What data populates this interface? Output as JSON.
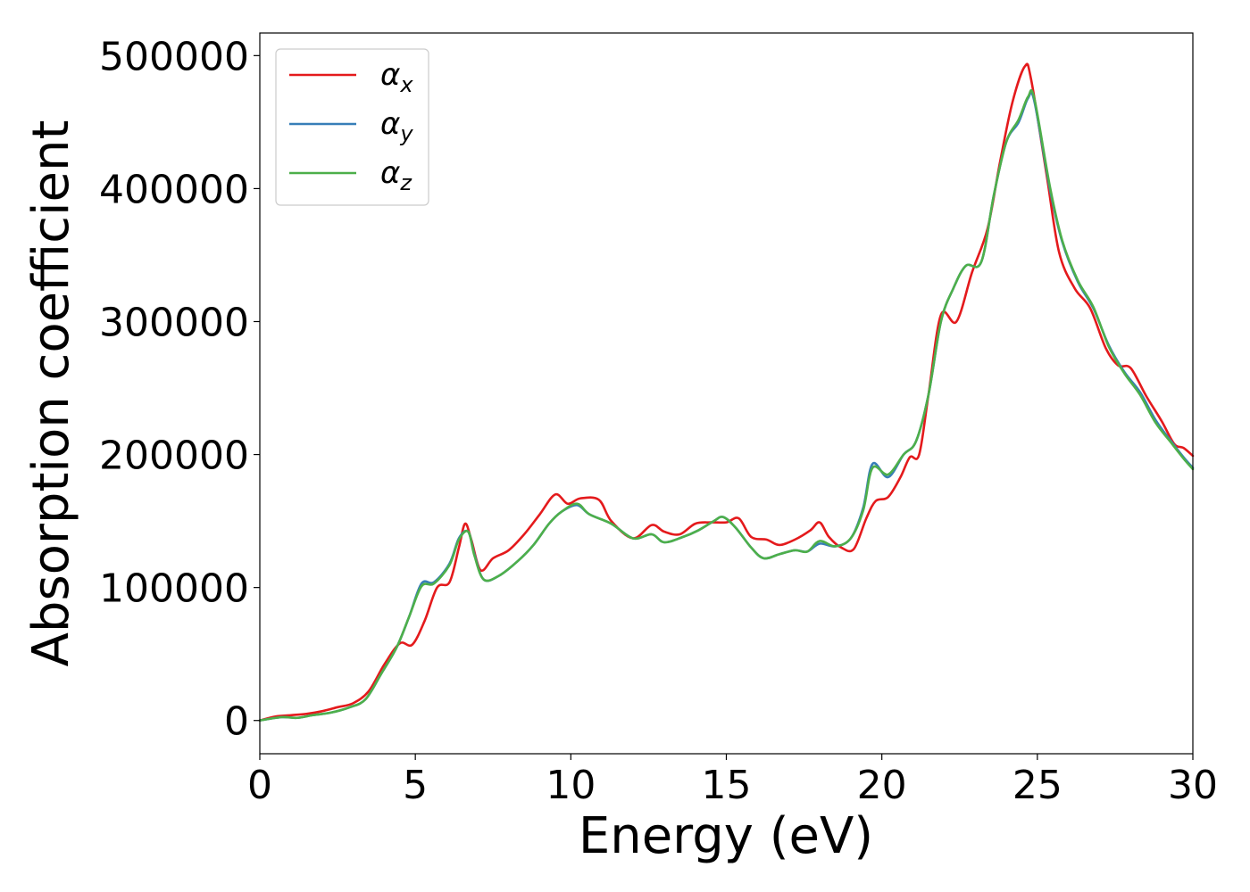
{
  "chart_data": {
    "type": "line",
    "xlabel": "Energy (eV)",
    "ylabel": "Absorption coefficient",
    "xlim": [
      0,
      30
    ],
    "ylim": [
      -25000,
      517000
    ],
    "x_ticks": [
      0,
      5,
      10,
      15,
      20,
      25,
      30
    ],
    "x_tick_labels": [
      "0",
      "5",
      "10",
      "15",
      "20",
      "25",
      "30"
    ],
    "y_ticks": [
      0,
      100000,
      200000,
      300000,
      400000,
      500000
    ],
    "y_tick_labels": [
      "0",
      "100000",
      "200000",
      "300000",
      "400000",
      "500000"
    ],
    "grid": false,
    "legend_placement": "top-left",
    "series": [
      {
        "name": "α",
        "subscript": "x",
        "color": "#e41a1c",
        "points": [
          [
            0,
            0
          ],
          [
            0.5,
            3000
          ],
          [
            1,
            4000
          ],
          [
            1.5,
            5000
          ],
          [
            2,
            7000
          ],
          [
            2.5,
            10000
          ],
          [
            3,
            13000
          ],
          [
            3.5,
            22000
          ],
          [
            4,
            42000
          ],
          [
            4.5,
            58000
          ],
          [
            4.9,
            57000
          ],
          [
            5.3,
            75000
          ],
          [
            5.7,
            100000
          ],
          [
            6.1,
            104000
          ],
          [
            6.4,
            130000
          ],
          [
            6.6,
            148000
          ],
          [
            6.8,
            136000
          ],
          [
            7.1,
            113000
          ],
          [
            7.5,
            122000
          ],
          [
            8,
            128000
          ],
          [
            8.5,
            140000
          ],
          [
            9,
            155000
          ],
          [
            9.5,
            170000
          ],
          [
            9.9,
            163000
          ],
          [
            10.3,
            167000
          ],
          [
            10.9,
            166000
          ],
          [
            11.3,
            150000
          ],
          [
            12,
            137000
          ],
          [
            12.6,
            147000
          ],
          [
            13,
            142000
          ],
          [
            13.5,
            140000
          ],
          [
            14,
            148000
          ],
          [
            14.5,
            149000
          ],
          [
            15,
            149000
          ],
          [
            15.4,
            152000
          ],
          [
            15.8,
            138000
          ],
          [
            16.3,
            136000
          ],
          [
            16.7,
            132000
          ],
          [
            17.2,
            136000
          ],
          [
            17.7,
            143000
          ],
          [
            18,
            149000
          ],
          [
            18.3,
            138000
          ],
          [
            18.7,
            130000
          ],
          [
            19.1,
            129000
          ],
          [
            19.5,
            152000
          ],
          [
            19.8,
            165000
          ],
          [
            20.2,
            168000
          ],
          [
            20.6,
            183000
          ],
          [
            20.9,
            198000
          ],
          [
            21.2,
            200000
          ],
          [
            21.5,
            245000
          ],
          [
            21.9,
            305000
          ],
          [
            22.4,
            300000
          ],
          [
            22.9,
            337000
          ],
          [
            23.4,
            370000
          ],
          [
            23.8,
            420000
          ],
          [
            24.2,
            465000
          ],
          [
            24.6,
            492000
          ],
          [
            24.8,
            482000
          ],
          [
            25.3,
            410000
          ],
          [
            25.7,
            352000
          ],
          [
            26.2,
            325000
          ],
          [
            26.7,
            310000
          ],
          [
            27.2,
            280000
          ],
          [
            27.6,
            267000
          ],
          [
            28,
            265000
          ],
          [
            28.5,
            244000
          ],
          [
            29,
            225000
          ],
          [
            29.4,
            208000
          ],
          [
            29.7,
            205000
          ],
          [
            30,
            199000
          ]
        ]
      },
      {
        "name": "α",
        "subscript": "y",
        "color": "#377eb8",
        "points": [
          [
            0,
            0
          ],
          [
            0.7,
            2500
          ],
          [
            1.2,
            2000
          ],
          [
            1.7,
            4000
          ],
          [
            2.3,
            6000
          ],
          [
            2.9,
            10000
          ],
          [
            3.4,
            16000
          ],
          [
            3.9,
            35000
          ],
          [
            4.4,
            55000
          ],
          [
            4.8,
            78000
          ],
          [
            5.2,
            103000
          ],
          [
            5.6,
            104000
          ],
          [
            6.1,
            118000
          ],
          [
            6.4,
            137000
          ],
          [
            6.7,
            142000
          ],
          [
            6.9,
            125000
          ],
          [
            7.2,
            106000
          ],
          [
            7.7,
            109000
          ],
          [
            8.3,
            120000
          ],
          [
            8.8,
            132000
          ],
          [
            9.3,
            148000
          ],
          [
            9.7,
            157000
          ],
          [
            10.2,
            162000
          ],
          [
            10.6,
            155000
          ],
          [
            11.3,
            148000
          ],
          [
            12,
            137000
          ],
          [
            12.6,
            140000
          ],
          [
            13,
            134000
          ],
          [
            13.6,
            138000
          ],
          [
            14.1,
            143000
          ],
          [
            14.6,
            150000
          ],
          [
            14.9,
            153000
          ],
          [
            15.3,
            145000
          ],
          [
            15.8,
            130000
          ],
          [
            16.2,
            122000
          ],
          [
            16.7,
            125000
          ],
          [
            17.2,
            128000
          ],
          [
            17.6,
            127000
          ],
          [
            18,
            133000
          ],
          [
            18.5,
            131000
          ],
          [
            19,
            137000
          ],
          [
            19.4,
            160000
          ],
          [
            19.7,
            193000
          ],
          [
            20.2,
            183000
          ],
          [
            20.7,
            200000
          ],
          [
            21.1,
            210000
          ],
          [
            21.5,
            245000
          ],
          [
            21.9,
            300000
          ],
          [
            22.3,
            325000
          ],
          [
            22.7,
            342000
          ],
          [
            23.2,
            345000
          ],
          [
            23.6,
            395000
          ],
          [
            24,
            435000
          ],
          [
            24.4,
            450000
          ],
          [
            24.7,
            468000
          ],
          [
            24.9,
            466000
          ],
          [
            25.4,
            400000
          ],
          [
            25.8,
            360000
          ],
          [
            26.3,
            330000
          ],
          [
            26.8,
            310000
          ],
          [
            27.3,
            282000
          ],
          [
            27.8,
            262000
          ],
          [
            28.3,
            247000
          ],
          [
            28.8,
            226000
          ],
          [
            29.3,
            210000
          ],
          [
            29.7,
            198000
          ],
          [
            30,
            190000
          ]
        ]
      },
      {
        "name": "α",
        "subscript": "z",
        "color": "#4daf4a",
        "points": [
          [
            0,
            0
          ],
          [
            0.7,
            2500
          ],
          [
            1.2,
            2000
          ],
          [
            1.7,
            4000
          ],
          [
            2.3,
            6000
          ],
          [
            2.9,
            10000
          ],
          [
            3.4,
            16000
          ],
          [
            3.9,
            35000
          ],
          [
            4.4,
            55000
          ],
          [
            4.8,
            78000
          ],
          [
            5.2,
            101000
          ],
          [
            5.6,
            103000
          ],
          [
            6.1,
            117000
          ],
          [
            6.4,
            136000
          ],
          [
            6.7,
            142000
          ],
          [
            6.9,
            124000
          ],
          [
            7.2,
            106000
          ],
          [
            7.7,
            109000
          ],
          [
            8.3,
            120000
          ],
          [
            8.8,
            132000
          ],
          [
            9.3,
            148000
          ],
          [
            9.7,
            157000
          ],
          [
            10.2,
            163000
          ],
          [
            10.6,
            155000
          ],
          [
            11.3,
            148000
          ],
          [
            12,
            137000
          ],
          [
            12.6,
            140000
          ],
          [
            13,
            134000
          ],
          [
            13.6,
            138000
          ],
          [
            14.1,
            143000
          ],
          [
            14.6,
            150000
          ],
          [
            14.9,
            153000
          ],
          [
            15.3,
            145000
          ],
          [
            15.8,
            130000
          ],
          [
            16.2,
            122000
          ],
          [
            16.7,
            125000
          ],
          [
            17.2,
            128000
          ],
          [
            17.6,
            127000
          ],
          [
            18,
            135000
          ],
          [
            18.5,
            131000
          ],
          [
            19,
            137000
          ],
          [
            19.4,
            158000
          ],
          [
            19.7,
            190000
          ],
          [
            20.2,
            185000
          ],
          [
            20.7,
            200000
          ],
          [
            21.1,
            210000
          ],
          [
            21.5,
            245000
          ],
          [
            21.9,
            300000
          ],
          [
            22.3,
            325000
          ],
          [
            22.7,
            342000
          ],
          [
            23.2,
            345000
          ],
          [
            23.6,
            395000
          ],
          [
            24,
            435000
          ],
          [
            24.4,
            452000
          ],
          [
            24.7,
            469000
          ],
          [
            24.9,
            468000
          ],
          [
            25.4,
            402000
          ],
          [
            25.8,
            361000
          ],
          [
            26.3,
            331000
          ],
          [
            26.8,
            311000
          ],
          [
            27.3,
            281000
          ],
          [
            27.8,
            261000
          ],
          [
            28.3,
            245000
          ],
          [
            28.8,
            224000
          ],
          [
            29.3,
            209000
          ],
          [
            29.7,
            197000
          ],
          [
            30,
            189000
          ]
        ]
      }
    ]
  }
}
